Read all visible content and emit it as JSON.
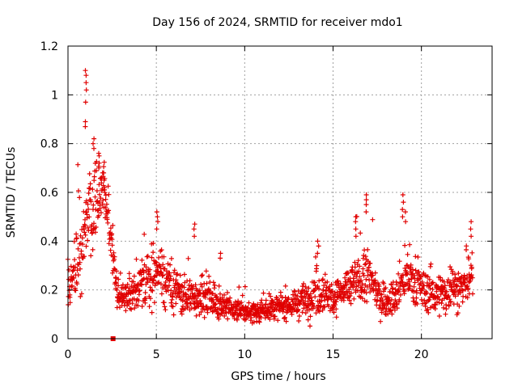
{
  "chart_data": {
    "type": "scatter",
    "title": "Day 156 of 2024, SRMTID for receiver mdo1",
    "xlabel": "GPS time / hours",
    "ylabel": "SRMTID / TECUs",
    "xlim": [
      0,
      24
    ],
    "ylim": [
      0,
      1.2
    ],
    "xticks": [
      0,
      5,
      10,
      15,
      20
    ],
    "yticks": [
      0,
      0.2,
      0.4,
      0.6,
      0.8,
      1,
      1.2
    ],
    "xtick_labels": [
      "0",
      "5",
      "10",
      "15",
      "20"
    ],
    "ytick_labels": [
      "0",
      "0.2",
      "0.4",
      "0.6",
      "0.8",
      "1",
      "1.2"
    ],
    "grid": true,
    "marker": "plus",
    "color": "#e00000",
    "marker_square": {
      "x": 2.55,
      "y": 0.0
    },
    "envelope": {
      "x": [
        0.0,
        0.3,
        0.6,
        0.9,
        1.1,
        1.3,
        1.6,
        1.9,
        2.2,
        2.5,
        2.8,
        3.2,
        3.6,
        4.0,
        4.5,
        5.0,
        5.3,
        5.7,
        6.2,
        6.8,
        7.3,
        7.8,
        8.3,
        8.8,
        9.3,
        9.8,
        10.5,
        11.2,
        12.0,
        12.8,
        13.5,
        14.0,
        14.5,
        15.0,
        15.5,
        16.0,
        16.5,
        17.0,
        17.5,
        18.0,
        18.5,
        19.0,
        19.5,
        20.0,
        20.5,
        21.0,
        21.5,
        22.0,
        22.5,
        22.9
      ],
      "center": [
        0.22,
        0.28,
        0.35,
        0.4,
        0.45,
        0.5,
        0.55,
        0.6,
        0.55,
        0.35,
        0.18,
        0.17,
        0.19,
        0.2,
        0.24,
        0.28,
        0.26,
        0.22,
        0.19,
        0.17,
        0.17,
        0.16,
        0.15,
        0.14,
        0.12,
        0.11,
        0.11,
        0.12,
        0.13,
        0.14,
        0.16,
        0.19,
        0.2,
        0.17,
        0.18,
        0.22,
        0.24,
        0.26,
        0.18,
        0.15,
        0.16,
        0.24,
        0.25,
        0.2,
        0.19,
        0.18,
        0.19,
        0.2,
        0.22,
        0.25
      ],
      "spread": [
        0.08,
        0.1,
        0.12,
        0.15,
        0.18,
        0.18,
        0.15,
        0.13,
        0.12,
        0.12,
        0.06,
        0.05,
        0.06,
        0.07,
        0.09,
        0.11,
        0.1,
        0.09,
        0.08,
        0.07,
        0.06,
        0.06,
        0.05,
        0.05,
        0.04,
        0.04,
        0.04,
        0.04,
        0.04,
        0.05,
        0.06,
        0.09,
        0.08,
        0.05,
        0.06,
        0.08,
        0.09,
        0.1,
        0.06,
        0.05,
        0.06,
        0.09,
        0.09,
        0.07,
        0.07,
        0.07,
        0.07,
        0.07,
        0.08,
        0.09
      ]
    },
    "peaks": [
      {
        "x": 1.02,
        "values": [
          0.87,
          0.89,
          0.97,
          1.02,
          1.05,
          1.08,
          1.1
        ]
      },
      {
        "x": 1.45,
        "values": [
          0.78,
          0.8,
          0.82
        ]
      },
      {
        "x": 1.75,
        "values": [
          0.7,
          0.72,
          0.75,
          0.76
        ]
      },
      {
        "x": 2.05,
        "values": [
          0.62,
          0.65,
          0.68
        ]
      },
      {
        "x": 5.05,
        "values": [
          0.45,
          0.48,
          0.5,
          0.52
        ]
      },
      {
        "x": 7.15,
        "values": [
          0.42,
          0.45,
          0.47
        ]
      },
      {
        "x": 8.6,
        "values": [
          0.33,
          0.35
        ]
      },
      {
        "x": 14.15,
        "values": [
          0.35,
          0.38,
          0.4
        ]
      },
      {
        "x": 16.3,
        "values": [
          0.42,
          0.45,
          0.48,
          0.5
        ]
      },
      {
        "x": 16.9,
        "values": [
          0.52,
          0.55,
          0.57,
          0.59
        ]
      },
      {
        "x": 18.95,
        "values": [
          0.5,
          0.53,
          0.56,
          0.59
        ]
      },
      {
        "x": 19.1,
        "values": [
          0.48,
          0.52
        ]
      },
      {
        "x": 22.8,
        "values": [
          0.42,
          0.45,
          0.48
        ]
      }
    ],
    "sample_count": 1600
  }
}
